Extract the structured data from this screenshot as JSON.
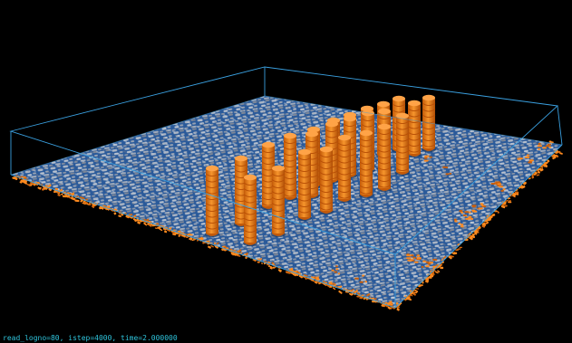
{
  "status_line": "read_logno=80, istep=4000, time=2.000000",
  "colors": {
    "background": "#000000",
    "bounding_box": "#3aa0e0",
    "floor_base": "#2a5a9a",
    "grain_light": "#a9b4c4",
    "grain_dark": "#7d8798",
    "pile_orange": "#f07f1a",
    "pile_dark": "#b84f06",
    "particle_orange": "#ff8a1e",
    "status_text": "#2fc4dc"
  },
  "scene": {
    "objects": [
      "bounding-box",
      "particle-bed",
      "cylinder-piles",
      "edge-particles",
      "debris-clusters"
    ],
    "pile_rows": 4
  }
}
